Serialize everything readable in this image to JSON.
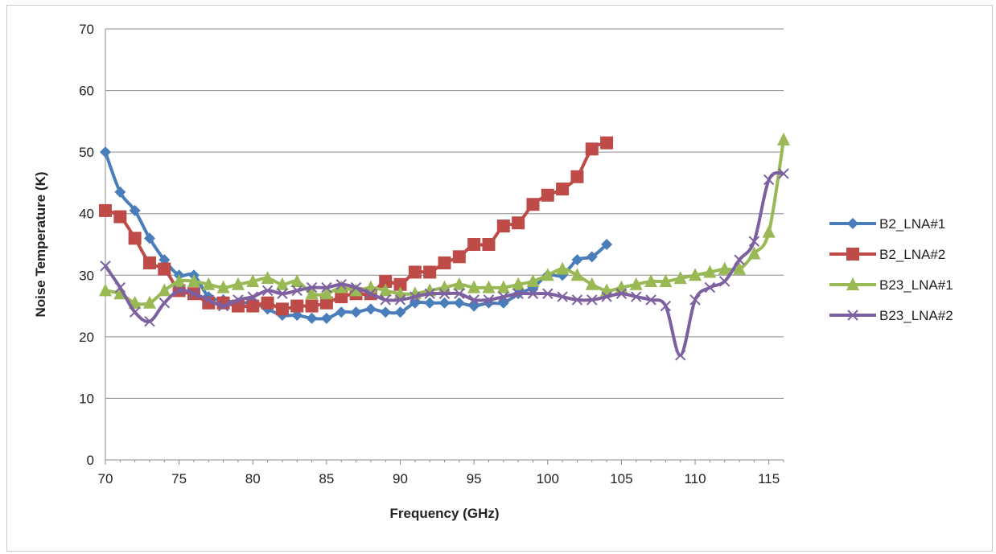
{
  "chart_data": {
    "type": "line",
    "title": "",
    "xlabel": "Frequency (GHz)",
    "ylabel": "Noise Temperature (K)",
    "xlim": [
      70,
      116
    ],
    "ylim": [
      0,
      70
    ],
    "xticks": [
      70,
      75,
      80,
      85,
      90,
      95,
      100,
      105,
      110,
      115
    ],
    "yticks": [
      0,
      10,
      20,
      30,
      40,
      50,
      60,
      70
    ],
    "grid": "horizontal",
    "legend_position": "right",
    "series": [
      {
        "name": "B2_LNA#1",
        "color": "#4a7ebb",
        "marker": "diamond",
        "x": [
          70,
          71,
          72,
          73,
          74,
          75,
          76,
          77,
          78,
          79,
          80,
          81,
          82,
          83,
          84,
          85,
          86,
          87,
          88,
          89,
          90,
          91,
          92,
          93,
          94,
          95,
          96,
          97,
          98,
          99,
          100,
          101,
          102,
          103,
          104
        ],
        "y": [
          50,
          43.5,
          40.5,
          36,
          32.5,
          30,
          30,
          26.5,
          26,
          25.5,
          25.5,
          24.5,
          23.5,
          23.5,
          23,
          23,
          24,
          24,
          24.5,
          24,
          24,
          25.5,
          25.5,
          25.5,
          25.5,
          25,
          25.5,
          25.5,
          27,
          28,
          30,
          30,
          32.5,
          33,
          35
        ]
      },
      {
        "name": "B2_LNA#2",
        "color": "#be4b48",
        "marker": "square",
        "x": [
          70,
          71,
          72,
          73,
          74,
          75,
          76,
          77,
          78,
          79,
          80,
          81,
          82,
          83,
          84,
          85,
          86,
          87,
          88,
          89,
          90,
          91,
          92,
          93,
          94,
          95,
          96,
          97,
          98,
          99,
          100,
          101,
          102,
          103,
          104
        ],
        "y": [
          40.5,
          39.5,
          36,
          32,
          31,
          27.5,
          27,
          25.5,
          25.5,
          25,
          25,
          25.5,
          24.5,
          25,
          25,
          25.5,
          26.5,
          27,
          27,
          29,
          28.5,
          30.5,
          30.5,
          32,
          33,
          35,
          35,
          38,
          38.5,
          41.5,
          43,
          44,
          46,
          50.5,
          51.5
        ]
      },
      {
        "name": "B23_LNA#1",
        "color": "#98b954",
        "marker": "triangle",
        "x": [
          70,
          71,
          72,
          73,
          74,
          75,
          76,
          77,
          78,
          79,
          80,
          81,
          82,
          83,
          84,
          85,
          86,
          87,
          88,
          89,
          90,
          91,
          92,
          93,
          94,
          95,
          96,
          97,
          98,
          99,
          100,
          101,
          102,
          103,
          104,
          105,
          106,
          107,
          108,
          109,
          110,
          111,
          112,
          113,
          114,
          115,
          116
        ],
        "y": [
          27.5,
          27,
          25.5,
          25.5,
          27.5,
          29,
          29,
          28.5,
          28,
          28.5,
          29,
          29.5,
          28.5,
          29,
          27,
          27,
          28,
          27.5,
          28,
          27.5,
          27,
          27,
          27.5,
          28,
          28.5,
          28,
          28,
          28,
          28.5,
          29,
          30,
          31,
          30,
          28.5,
          27.5,
          28,
          28.5,
          29,
          29,
          29.5,
          30,
          30.5,
          31,
          31,
          33.5,
          37,
          52
        ]
      },
      {
        "name": "B23_LNA#2",
        "color": "#7d60a0",
        "marker": "x",
        "x": [
          70,
          71,
          72,
          73,
          74,
          75,
          76,
          77,
          78,
          79,
          80,
          81,
          82,
          83,
          84,
          85,
          86,
          87,
          88,
          89,
          90,
          91,
          92,
          93,
          94,
          95,
          96,
          97,
          98,
          99,
          100,
          101,
          102,
          103,
          104,
          105,
          106,
          107,
          108,
          109,
          110,
          111,
          112,
          113,
          114,
          115,
          116
        ],
        "y": [
          31.5,
          28,
          24,
          22.5,
          25.5,
          27.5,
          27,
          26,
          25,
          26,
          26.5,
          27.5,
          27,
          27.5,
          28,
          28,
          28.5,
          28,
          27,
          26,
          26,
          26.5,
          27,
          27,
          27,
          26,
          26,
          26.5,
          27,
          27,
          27,
          26.5,
          26,
          26,
          26.5,
          27,
          26.5,
          26,
          25,
          17,
          26,
          28,
          29,
          32.5,
          35.5,
          45.5,
          46.5
        ]
      }
    ]
  }
}
